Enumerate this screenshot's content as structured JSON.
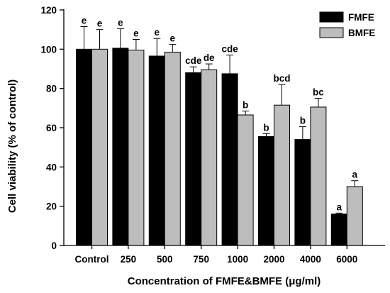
{
  "chart_data": {
    "type": "bar",
    "xlabel": "Concentration of FMFE&BMFE (μg/ml)",
    "ylabel": "Cell viability (% of control)",
    "ylim": [
      0,
      120
    ],
    "yticks": [
      0,
      20,
      40,
      60,
      80,
      100,
      120
    ],
    "categories": [
      "Control",
      "250",
      "500",
      "750",
      "1000",
      "2000",
      "4000",
      "6000"
    ],
    "series": [
      {
        "name": "FMFE",
        "color": "#000000",
        "values": [
          100,
          100.5,
          96.5,
          88,
          87.5,
          55.5,
          54,
          16
        ],
        "errors": [
          11.5,
          10,
          9,
          3,
          9.5,
          1.5,
          6.5,
          0.5
        ],
        "letters": [
          "e",
          "e",
          "e",
          "cde",
          "cde",
          "b",
          "b",
          "a"
        ]
      },
      {
        "name": "BMFE",
        "color": "#bdbdbd",
        "values": [
          100,
          99.5,
          98.5,
          89.5,
          66.5,
          71.5,
          70.5,
          30
        ],
        "errors": [
          10,
          5.5,
          4,
          3,
          2,
          10.5,
          4.5,
          3
        ],
        "letters": [
          "e",
          "e",
          "e",
          "de",
          "b",
          "bcd",
          "bc",
          "a"
        ]
      }
    ],
    "legend_position": "top-right",
    "grid": false
  }
}
